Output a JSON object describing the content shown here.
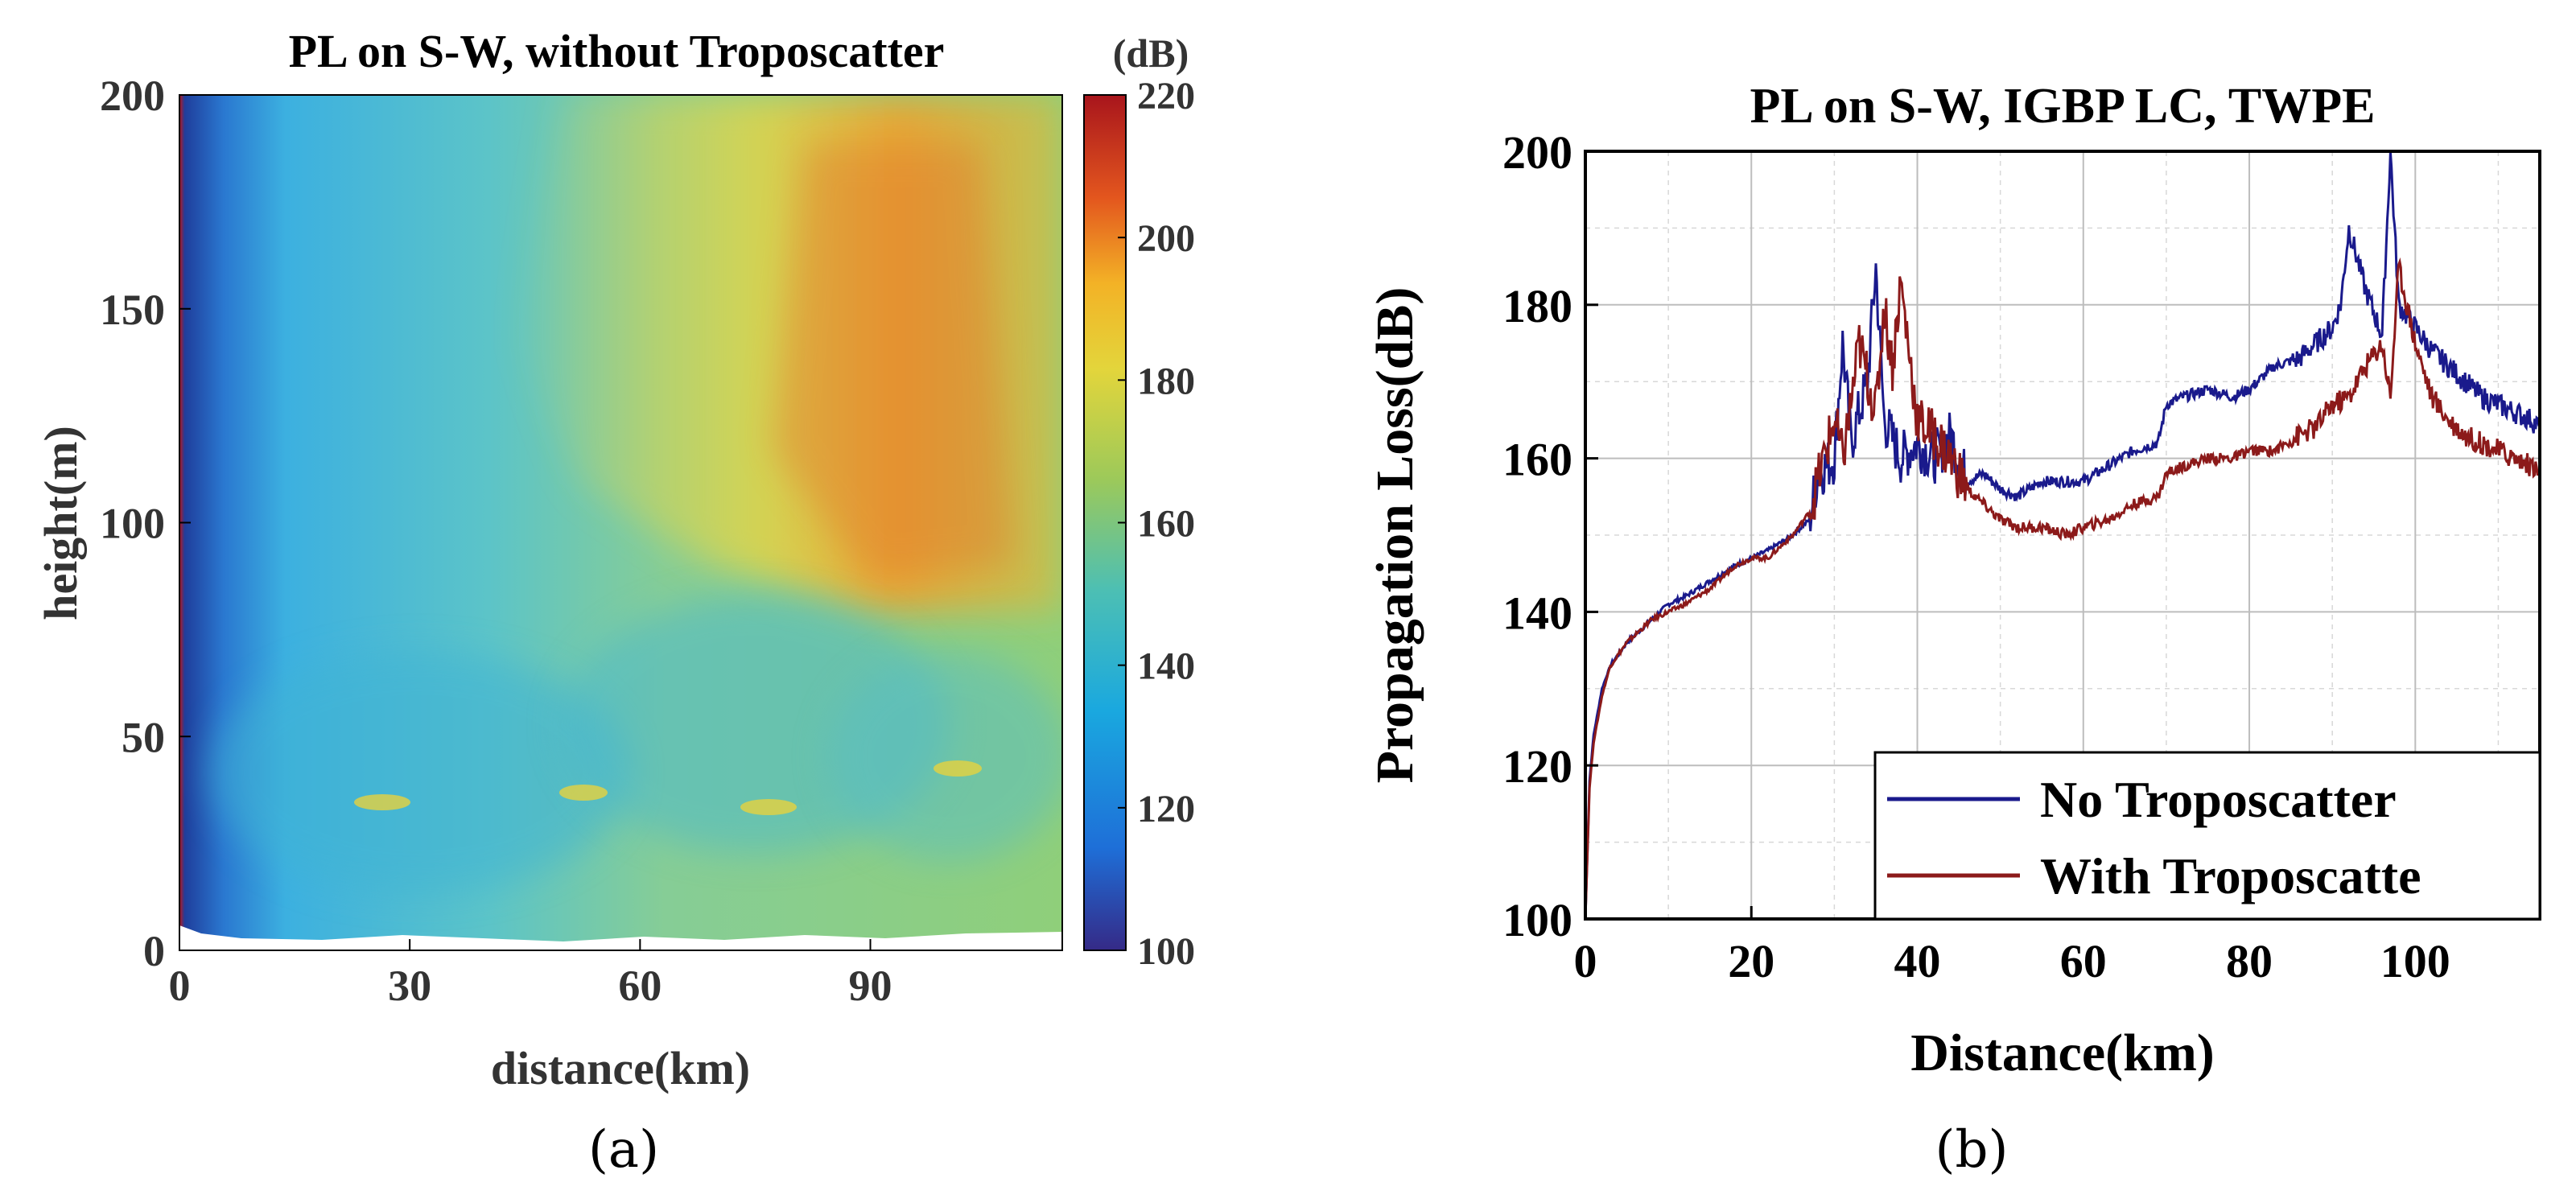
{
  "chart_data": [
    {
      "type": "heatmap",
      "panel_label": "(a)",
      "title": "PL on S-W, without Troposcatter",
      "xlabel": "distance(km)",
      "ylabel": "height(m)",
      "xlim": [
        0,
        115
      ],
      "ylim": [
        0,
        200
      ],
      "xticks": [
        0,
        30,
        60,
        90
      ],
      "yticks": [
        0,
        50,
        100,
        150,
        200
      ],
      "colorbar": {
        "label": "(dB)",
        "range": [
          100,
          220
        ],
        "ticks": [
          100,
          120,
          140,
          160,
          180,
          200,
          220
        ],
        "colormap": "parula-like"
      },
      "description_regions": [
        {
          "x": [
            0,
            5
          ],
          "y": [
            0,
            200
          ],
          "value_db": 115
        },
        {
          "x": [
            5,
            40
          ],
          "y": [
            0,
            200
          ],
          "value_db": 145
        },
        {
          "x": [
            40,
            115
          ],
          "y": [
            0,
            70
          ],
          "value_db": 150
        },
        {
          "x": [
            50,
            80
          ],
          "y": [
            70,
            200
          ],
          "value_db": 162
        },
        {
          "x": [
            80,
            115
          ],
          "y": [
            90,
            200
          ],
          "value_db": 185
        }
      ]
    },
    {
      "type": "line",
      "panel_label": "(b)",
      "title": "PL on S-W, IGBP LC, TWPE",
      "xlabel": "Distance(km)",
      "ylabel": "Propagation Loss(dB)",
      "xlim": [
        0,
        115
      ],
      "ylim": [
        100,
        200
      ],
      "xticks": [
        0,
        20,
        40,
        60,
        80,
        100
      ],
      "yticks": [
        100,
        120,
        140,
        160,
        180,
        200
      ],
      "grid": true,
      "legend_position": "bottom-right",
      "series": [
        {
          "name": "No Troposcatter",
          "color": "#1a1a8c",
          "x": [
            0,
            0.5,
            1,
            2,
            3,
            5,
            8,
            10,
            12,
            15,
            18,
            20,
            22,
            25,
            27,
            28,
            30,
            31,
            32,
            34,
            35,
            36,
            38,
            40,
            42,
            44,
            46,
            48,
            50,
            52,
            55,
            58,
            60,
            63,
            66,
            69,
            70,
            72,
            75,
            78,
            80,
            83,
            86,
            88,
            90,
            91,
            92,
            94,
            96,
            97,
            98,
            100,
            102,
            104,
            106,
            108,
            110,
            112,
            114,
            115
          ],
          "values": [
            100,
            118,
            124,
            130,
            133,
            136,
            139,
            141,
            142,
            144,
            146,
            147,
            148,
            150,
            152,
            158,
            160,
            175,
            162,
            170,
            185,
            165,
            160,
            162,
            160,
            163,
            157,
            158,
            156,
            155,
            157,
            157,
            157,
            159,
            161,
            162,
            167,
            168,
            169,
            168,
            169,
            172,
            173,
            175,
            177,
            180,
            190,
            182,
            176,
            200,
            180,
            177,
            174,
            172,
            170,
            168,
            167,
            166,
            165,
            164
          ]
        },
        {
          "name": "With Troposcatte",
          "color": "#8c1a1a",
          "x": [
            0,
            0.5,
            1,
            2,
            3,
            5,
            8,
            10,
            12,
            15,
            18,
            20,
            22,
            25,
            27,
            28,
            30,
            31,
            32,
            33,
            35,
            36,
            37,
            38,
            40,
            42,
            44,
            46,
            48,
            50,
            52,
            55,
            58,
            60,
            63,
            66,
            69,
            70,
            72,
            75,
            78,
            80,
            83,
            86,
            88,
            90,
            92,
            94,
            96,
            97,
            98,
            100,
            102,
            104,
            106,
            108,
            110,
            112,
            114,
            115
          ],
          "values": [
            100,
            117,
            123,
            129,
            133,
            136,
            139,
            140,
            141,
            143,
            146,
            147,
            147,
            150,
            153,
            157,
            165,
            160,
            167,
            175,
            166,
            180,
            172,
            183,
            165,
            163,
            160,
            156,
            154,
            152,
            151,
            151,
            150,
            151,
            152,
            154,
            155,
            158,
            159,
            160,
            160,
            161,
            161,
            163,
            164,
            167,
            168,
            172,
            175,
            168,
            185,
            175,
            168,
            165,
            163,
            162,
            161,
            160,
            159,
            158
          ]
        }
      ]
    }
  ]
}
